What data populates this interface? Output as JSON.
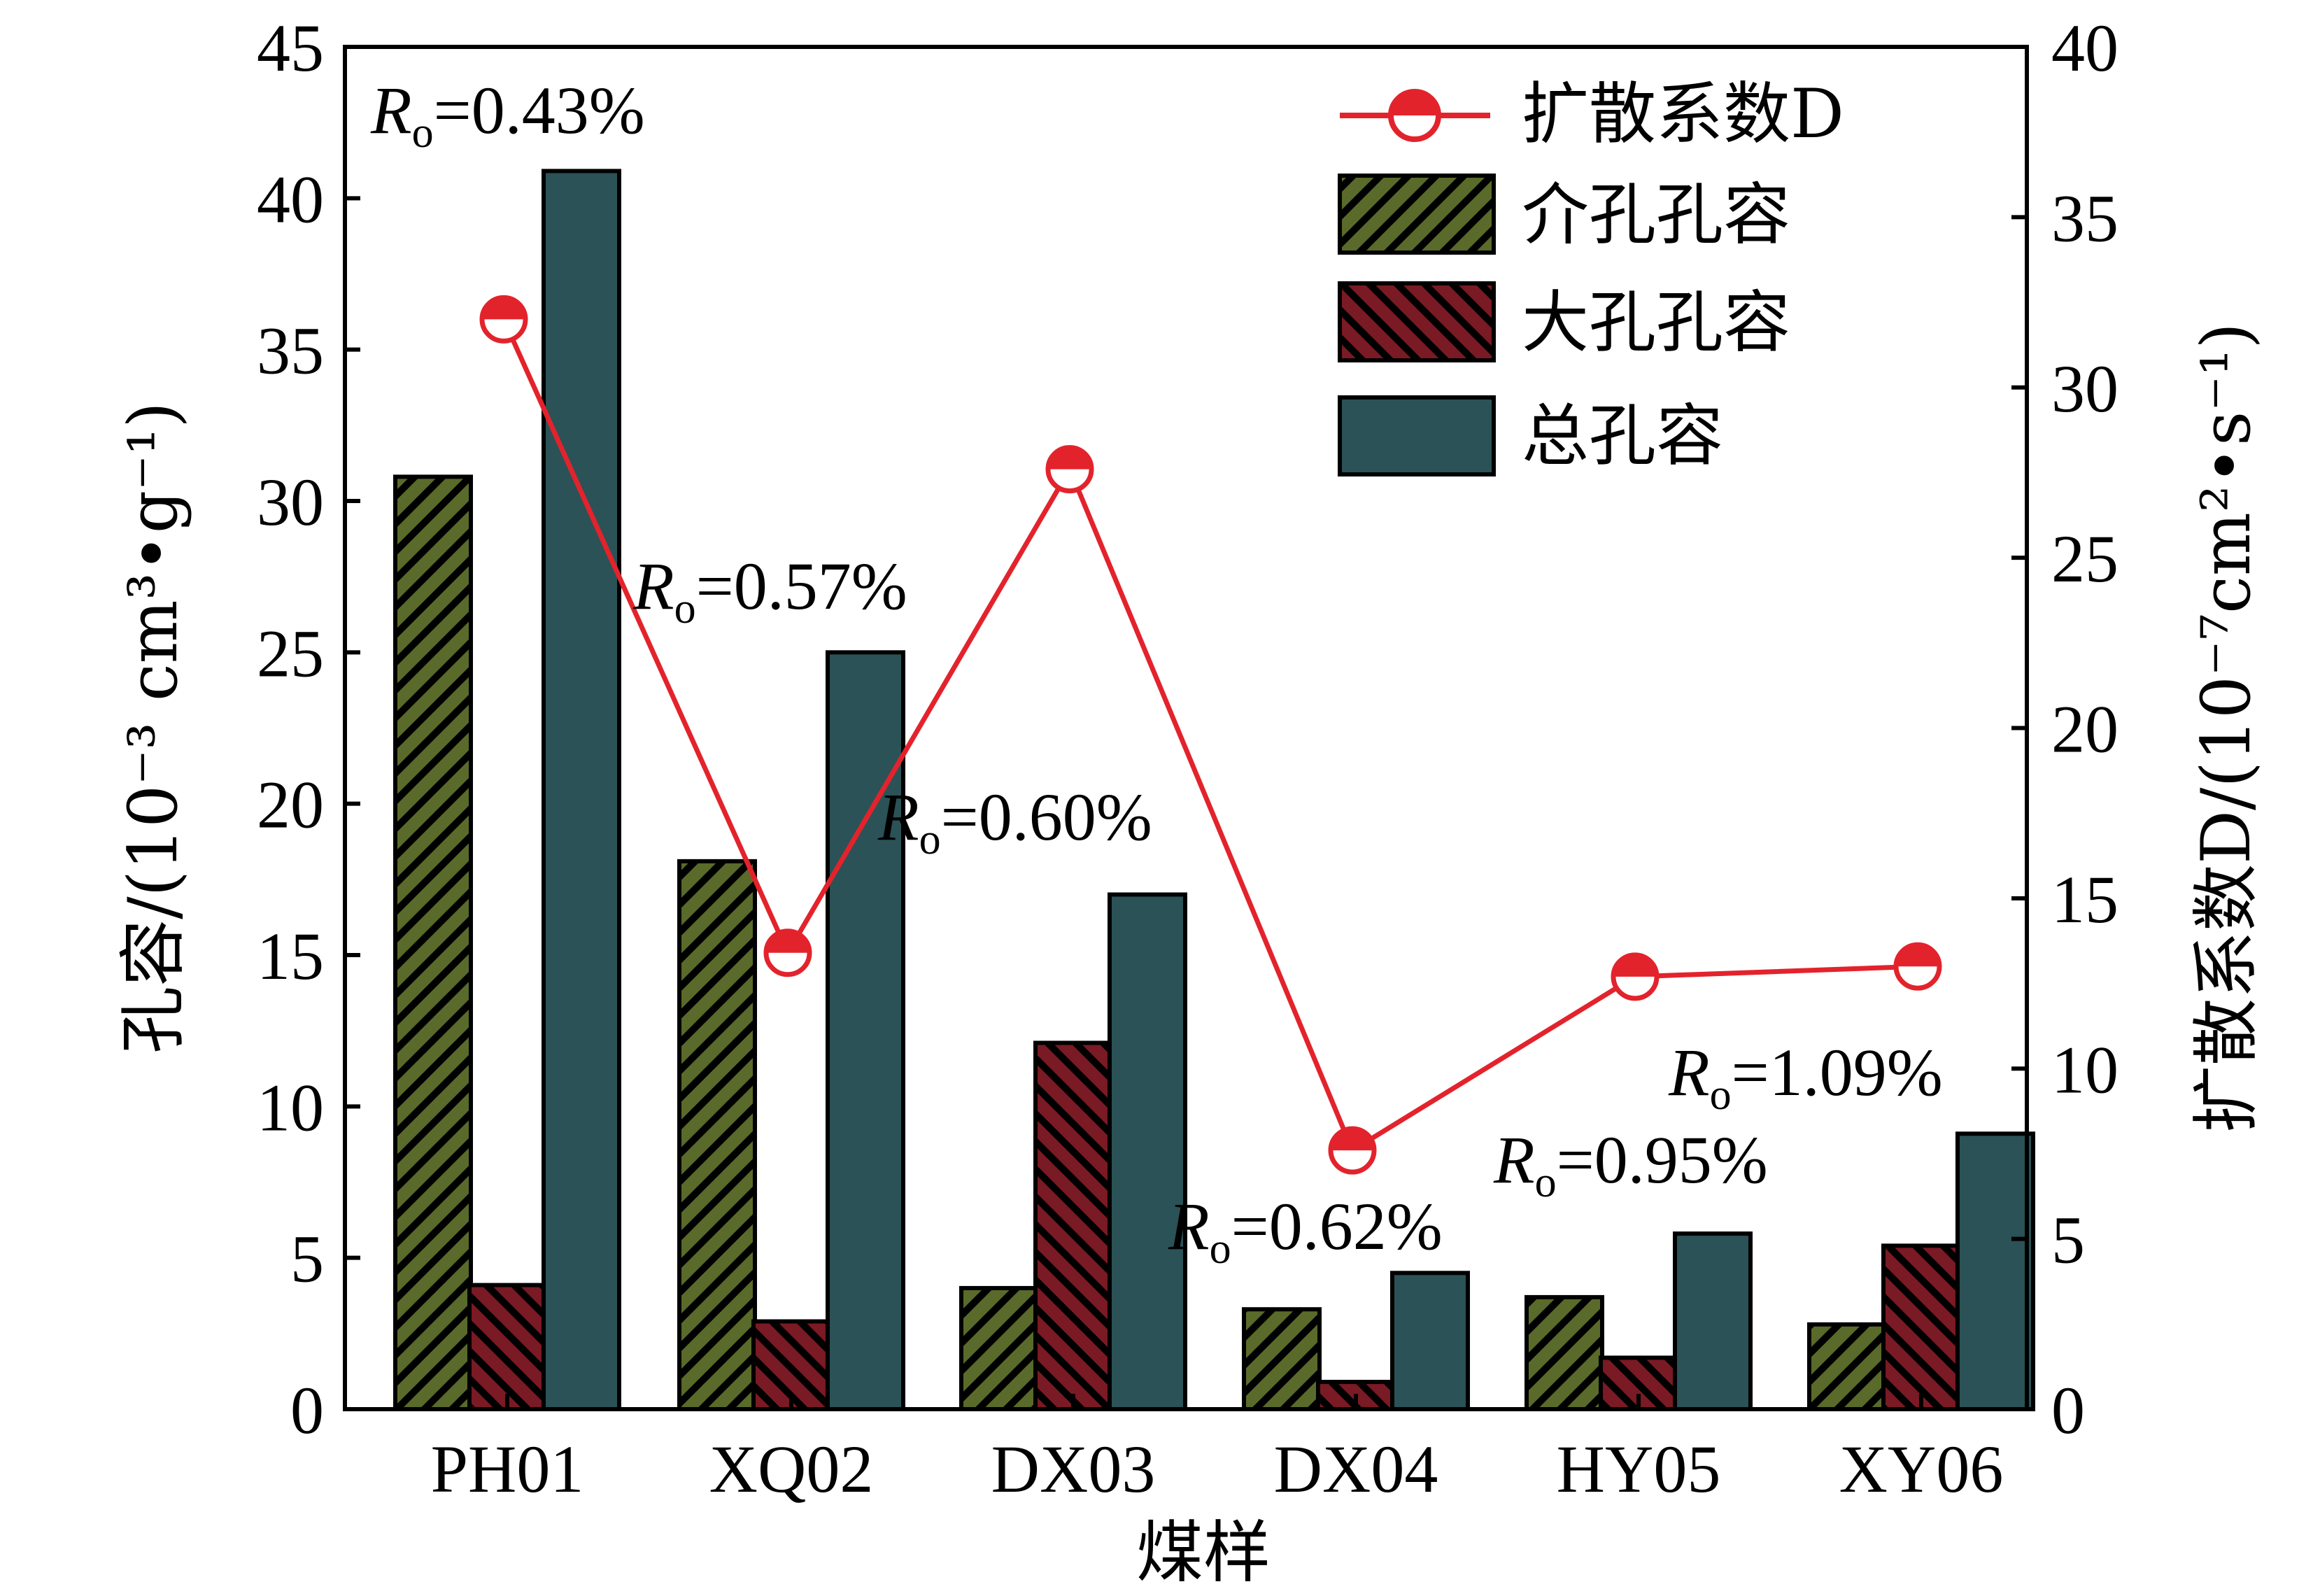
{
  "chart_data": {
    "type": "bar",
    "categories": [
      "PH01",
      "XQ02",
      "DX03",
      "DX04",
      "HY05",
      "XY06"
    ],
    "xlabel": "煤样",
    "ylabel_left": "孔容/(10⁻³ cm³•g⁻¹)",
    "ylabel_right": "扩散系数D/(10⁻⁷cm²•s⁻¹)",
    "ylim_left": [
      0,
      45
    ],
    "yticks_left": [
      0,
      5,
      10,
      15,
      20,
      25,
      30,
      35,
      40,
      45
    ],
    "ylim_right": [
      0,
      40
    ],
    "yticks_right": [
      0,
      5,
      10,
      15,
      20,
      25,
      30,
      35,
      40
    ],
    "series": [
      {
        "name": "介孔孔容",
        "kind": "bar",
        "axis": "left",
        "color": "#5a6a2a",
        "pattern": "hatch-forward",
        "values": [
          30.8,
          18.1,
          4.0,
          3.3,
          3.7,
          2.8
        ]
      },
      {
        "name": "大孔孔容",
        "kind": "bar",
        "axis": "left",
        "color": "#7a1a24",
        "pattern": "hatch-back",
        "values": [
          4.1,
          2.9,
          12.1,
          0.9,
          1.7,
          5.4
        ]
      },
      {
        "name": "总孔容",
        "kind": "bar",
        "axis": "left",
        "color": "#2b5256",
        "pattern": "solid",
        "values": [
          40.9,
          25.0,
          17.0,
          4.5,
          5.8,
          9.1
        ]
      },
      {
        "name": "扩散系数D",
        "kind": "line",
        "axis": "right",
        "color": "#e3232c",
        "marker": "half-filled-circle",
        "values": [
          32.0,
          13.4,
          27.6,
          7.6,
          12.7,
          13.0
        ]
      }
    ],
    "annotations": [
      {
        "category": "PH01",
        "text": "0.43%"
      },
      {
        "category": "XQ02",
        "text": "0.57%"
      },
      {
        "category": "DX03",
        "text": "0.60%"
      },
      {
        "category": "DX04",
        "text": "0.62%"
      },
      {
        "category": "HY05",
        "text": "0.95%"
      },
      {
        "category": "XY06",
        "text": "1.09%"
      }
    ],
    "annotation_prefix": "R",
    "annotation_subscript": "o",
    "annotation_eq": "=",
    "legend_position": "top-right",
    "grid": false
  }
}
